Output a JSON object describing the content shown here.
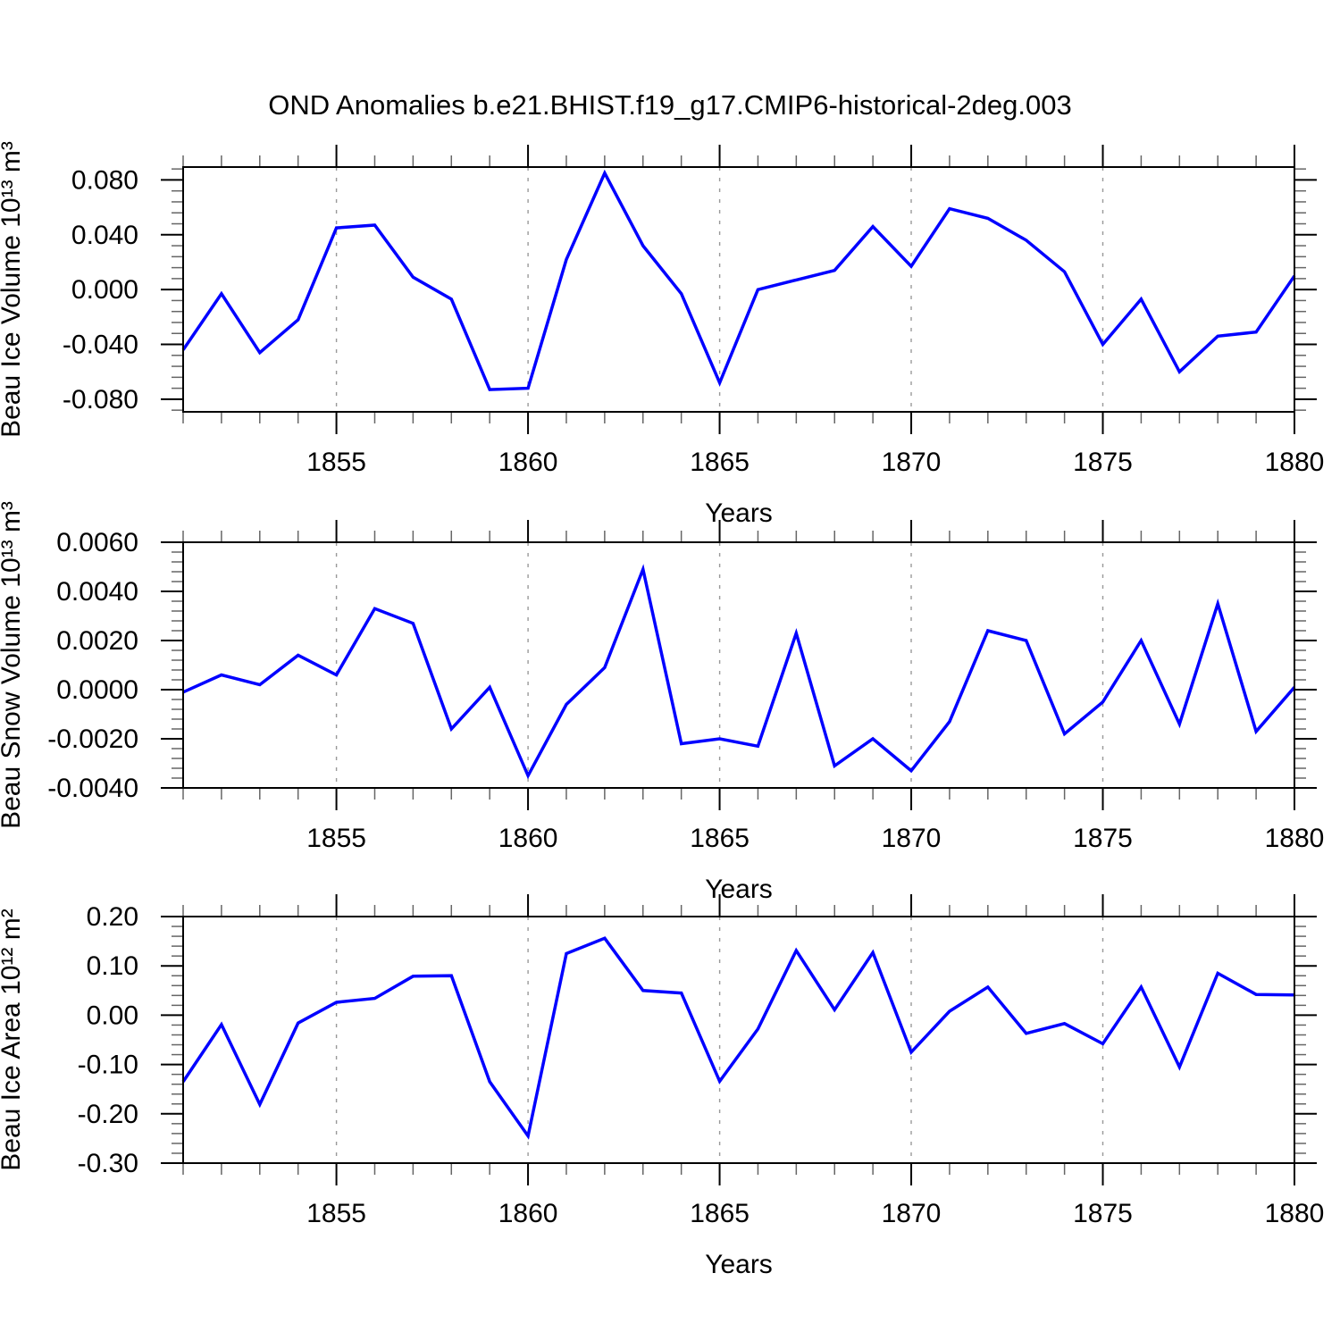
{
  "title": "OND Anomalies b.e21.BHIST.f19_g17.CMIP6-historical-2deg.003",
  "figure": {
    "background": "#ffffff",
    "line_color": "#0000ff",
    "grid_color": "#999999",
    "axis_color": "#000000",
    "minor_tick_color": "#666666"
  },
  "x_axis": {
    "label": "Years",
    "start": 1851,
    "end": 1880,
    "major_ticks": [
      1855,
      1860,
      1865,
      1870,
      1875,
      1880
    ],
    "major_tick_labels": [
      "1855",
      "1860",
      "1865",
      "1870",
      "1875",
      "1880"
    ],
    "grid_years": [
      1855,
      1860,
      1865,
      1870,
      1875
    ],
    "minor_step": 1
  },
  "years": [
    1851,
    1852,
    1853,
    1854,
    1855,
    1856,
    1857,
    1858,
    1859,
    1860,
    1861,
    1862,
    1863,
    1864,
    1865,
    1866,
    1867,
    1868,
    1869,
    1870,
    1871,
    1872,
    1873,
    1874,
    1875,
    1876,
    1877,
    1878,
    1879,
    1880
  ],
  "chart_data": [
    {
      "type": "line",
      "name": "beau-ice-volume",
      "ylabel": "Beau Ice Volume 10¹³ m³",
      "xlabel": "Years",
      "values": [
        -0.044,
        -0.003,
        -0.046,
        -0.022,
        0.045,
        0.047,
        0.009,
        -0.007,
        -0.073,
        -0.072,
        0.022,
        0.085,
        0.032,
        -0.003,
        -0.068,
        0.0,
        0.007,
        0.014,
        0.046,
        0.017,
        0.059,
        0.052,
        0.036,
        0.013,
        -0.04,
        -0.007,
        -0.06,
        -0.034,
        -0.031,
        0.01
      ],
      "ylim": [
        -0.0892,
        0.0894
      ],
      "yticks": [
        0.08,
        0.04,
        0.0,
        -0.04,
        -0.08
      ],
      "ytick_labels": [
        "0.080",
        "0.040",
        "0.000",
        "-0.040",
        "-0.080"
      ],
      "y_minor_step": 0.008
    },
    {
      "type": "line",
      "name": "beau-snow-volume",
      "ylabel": "Beau Snow Volume 10¹³ m³",
      "xlabel": "Years",
      "values": [
        -0.0001,
        0.0006,
        0.0002,
        0.0014,
        0.0006,
        0.0033,
        0.0027,
        -0.0016,
        0.0001,
        -0.0035,
        -0.0006,
        0.0009,
        0.0049,
        -0.0022,
        -0.002,
        -0.0023,
        0.0023,
        -0.0031,
        -0.002,
        -0.0033,
        -0.0013,
        0.0024,
        0.002,
        -0.0018,
        -0.0005,
        0.002,
        -0.0014,
        0.0035,
        -0.0017,
        0.0001
      ],
      "ylim": [
        -0.004,
        0.006
      ],
      "yticks": [
        0.006,
        0.004,
        0.002,
        0.0,
        -0.002,
        -0.004
      ],
      "ytick_labels": [
        "0.0060",
        "0.0040",
        "0.0020",
        "0.0000",
        "-0.0020",
        "-0.0040"
      ],
      "y_minor_step": 0.0004
    },
    {
      "type": "line",
      "name": "beau-ice-area",
      "ylabel": "Beau Ice Area 10¹² m²",
      "xlabel": "Years",
      "values": [
        -0.135,
        -0.019,
        -0.181,
        -0.016,
        0.026,
        0.034,
        0.079,
        0.08,
        -0.135,
        -0.245,
        0.125,
        0.156,
        0.05,
        0.045,
        -0.134,
        -0.028,
        0.131,
        0.011,
        0.127,
        -0.075,
        0.008,
        0.057,
        -0.037,
        -0.017,
        -0.058,
        0.057,
        -0.105,
        0.085,
        0.042,
        0.041
      ],
      "ylim": [
        -0.3,
        0.2
      ],
      "yticks": [
        0.2,
        0.1,
        0.0,
        -0.1,
        -0.2,
        -0.3
      ],
      "ytick_labels": [
        "0.20",
        "0.10",
        "0.00",
        "-0.10",
        "-0.20",
        "-0.30"
      ],
      "y_minor_step": 0.02
    }
  ]
}
